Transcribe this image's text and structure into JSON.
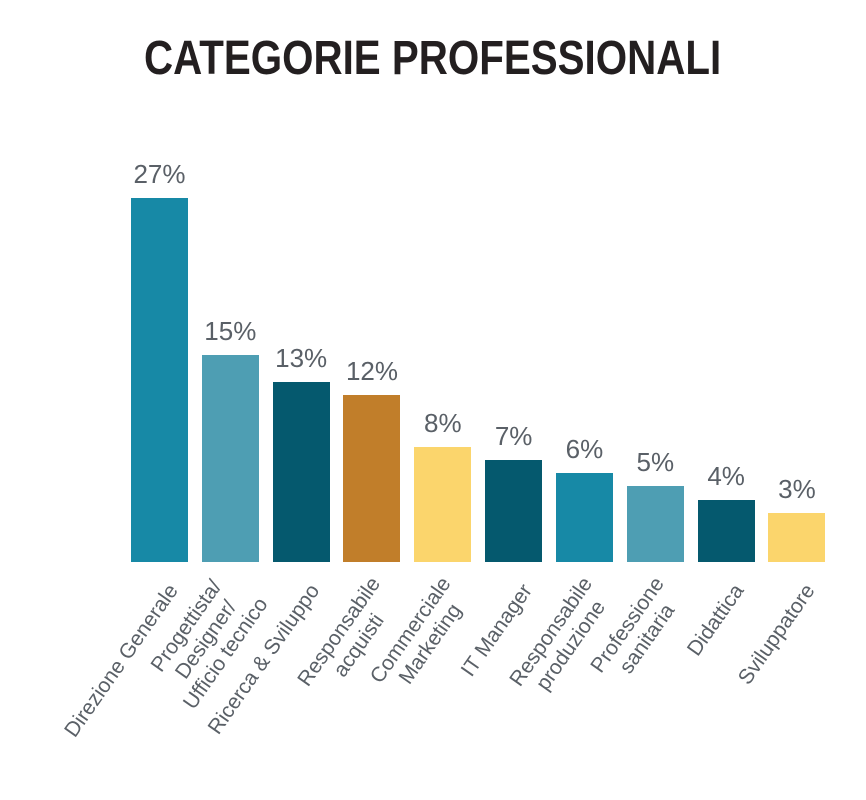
{
  "title": "CATEGORIE PROFESSIONALI",
  "chart_data": {
    "type": "bar",
    "title": "CATEGORIE PROFESSIONALI",
    "categories": [
      "Direzione Generale",
      "Progettista/ Designer/ Ufficio tecnico",
      "Ricerca & Sviluppo",
      "Responsabile acquisti",
      "Commerciale Marketing",
      "IT Manager",
      "Responsabile produzione",
      "Professione sanitaria",
      "Didattica",
      "Sviluppatore"
    ],
    "category_lines": [
      [
        "Direzione Generale"
      ],
      [
        "Progettista/",
        "Designer/",
        "Ufficio tecnico"
      ],
      [
        "Ricerca & Sviluppo"
      ],
      [
        "Responsabile",
        "acquisti"
      ],
      [
        "Commerciale",
        "Marketing"
      ],
      [
        "IT Manager"
      ],
      [
        "Responsabile",
        "produzione"
      ],
      [
        "Professione",
        "sanitaria"
      ],
      [
        "Didattica"
      ],
      [
        "Sviluppatore"
      ]
    ],
    "values": [
      27,
      15,
      13,
      12,
      8,
      7,
      6,
      5,
      4,
      3
    ],
    "value_labels": [
      "27%",
      "15%",
      "13%",
      "12%",
      "8%",
      "7%",
      "6%",
      "5%",
      "4%",
      "3%"
    ],
    "bar_colors": [
      "#1789A6",
      "#4E9EB3",
      "#05596E",
      "#C17E2A",
      "#FBD56C",
      "#05596E",
      "#1789A6",
      "#4E9EB3",
      "#05596E",
      "#FBD56C"
    ],
    "xlabel": "",
    "ylabel": "",
    "layout": {
      "axes_visible": false,
      "gridlines": false,
      "legend": "none",
      "value_label_position": "above-bar",
      "category_label_rotation_deg": -55,
      "title_color": "#231f20",
      "label_text_color": "#5a6067",
      "background_color": "#ffffff"
    }
  }
}
